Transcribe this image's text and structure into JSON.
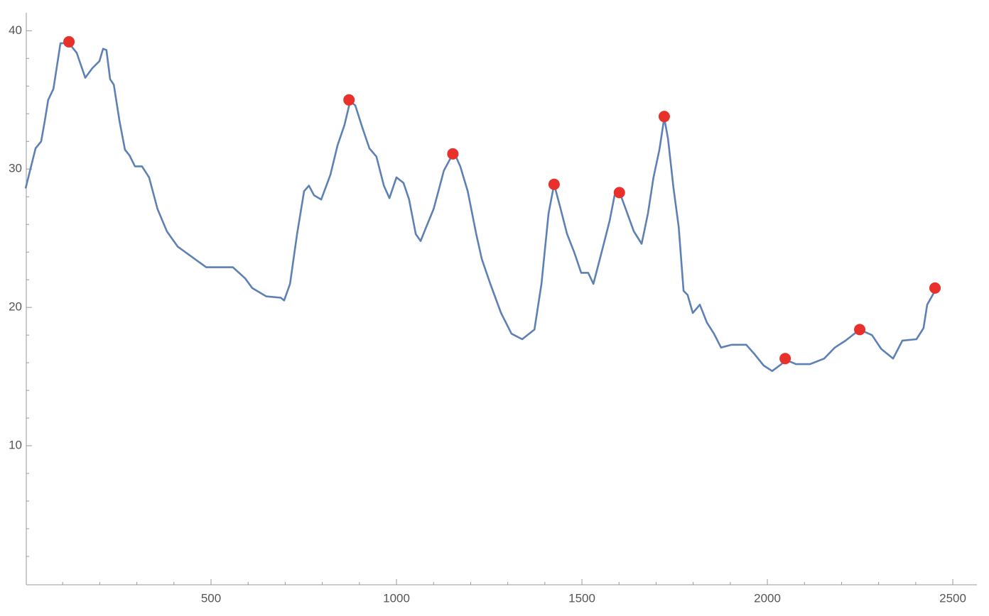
{
  "chart_data": {
    "type": "line",
    "xlim": [
      0,
      2565
    ],
    "ylim": [
      0,
      41.3
    ],
    "xticks": [
      500,
      1000,
      1500,
      2000,
      2500
    ],
    "yticks": [
      10,
      20,
      30,
      40
    ],
    "xminorticks": [
      100,
      200,
      300,
      400,
      600,
      700,
      800,
      900,
      1100,
      1200,
      1300,
      1400,
      1600,
      1700,
      1800,
      1900,
      2100,
      2200,
      2300,
      2400
    ],
    "yminorticks": [
      2,
      4,
      6,
      8,
      12,
      14,
      16,
      18,
      22,
      24,
      26,
      28,
      32,
      34,
      36,
      38
    ],
    "series": [
      {
        "color": "#5e81b5",
        "x": [
          0,
          12,
          27,
          42,
          52,
          61,
          75,
          94,
          117,
          138,
          161,
          180,
          199,
          209,
          218,
          228,
          238,
          253,
          268,
          280,
          295,
          314,
          333,
          356,
          381,
          410,
          487,
          559,
          592,
          611,
          649,
          688,
          697,
          713,
          732,
          751,
          764,
          778,
          797,
          822,
          841,
          860,
          875,
          889,
          908,
          927,
          946,
          966,
          981,
          1000,
          1019,
          1034,
          1052,
          1065,
          1080,
          1100,
          1115,
          1128,
          1144,
          1157,
          1172,
          1192,
          1215,
          1230,
          1253,
          1282,
          1310,
          1339,
          1372,
          1391,
          1410,
          1425,
          1441,
          1460,
          1479,
          1498,
          1517,
          1531,
          1556,
          1575,
          1588,
          1602,
          1621,
          1640,
          1661,
          1678,
          1693,
          1709,
          1722,
          1732,
          1747,
          1761,
          1774,
          1785,
          1799,
          1818,
          1837,
          1856,
          1875,
          1904,
          1943,
          1966,
          1990,
          2013,
          2038,
          2050,
          2077,
          2115,
          2153,
          2182,
          2211,
          2249,
          2282,
          2307,
          2339,
          2364,
          2402,
          2421,
          2431,
          2454
        ],
        "values": [
          28.6,
          29.9,
          31.5,
          32.0,
          33.5,
          35.0,
          35.8,
          39.1,
          39.1,
          38.4,
          36.6,
          37.3,
          37.8,
          38.7,
          38.6,
          36.5,
          36.1,
          33.5,
          31.4,
          31.0,
          30.2,
          30.2,
          29.4,
          27.1,
          25.5,
          24.4,
          22.9,
          22.9,
          22.1,
          21.4,
          20.8,
          20.7,
          20.5,
          21.7,
          25.3,
          28.4,
          28.8,
          28.1,
          27.8,
          29.6,
          31.7,
          33.2,
          34.9,
          34.6,
          33.0,
          31.5,
          30.9,
          28.8,
          27.9,
          29.4,
          29.0,
          27.8,
          25.3,
          24.8,
          25.8,
          27.1,
          28.6,
          29.9,
          30.7,
          31.1,
          30.2,
          28.4,
          25.3,
          23.5,
          21.7,
          19.6,
          18.1,
          17.7,
          18.4,
          21.7,
          26.8,
          28.9,
          27.3,
          25.3,
          24.0,
          22.5,
          22.5,
          21.7,
          24.3,
          26.3,
          28.1,
          28.3,
          26.9,
          25.5,
          24.6,
          26.8,
          29.4,
          31.4,
          33.7,
          32.2,
          28.6,
          25.8,
          21.2,
          20.9,
          19.6,
          20.2,
          18.9,
          18.1,
          17.1,
          17.3,
          17.3,
          16.6,
          15.8,
          15.4,
          15.9,
          16.2,
          15.9,
          15.9,
          16.3,
          17.1,
          17.6,
          18.4,
          18.0,
          17.0,
          16.3,
          17.6,
          17.7,
          18.5,
          20.2,
          21.3
        ]
      }
    ],
    "points": {
      "color": "#e8312b",
      "x": [
        117,
        872,
        1152,
        1425,
        1601,
        1722,
        2048,
        2249,
        2452
      ],
      "values": [
        39.2,
        35.0,
        31.1,
        28.9,
        28.3,
        33.8,
        16.3,
        18.4,
        21.4
      ]
    }
  }
}
